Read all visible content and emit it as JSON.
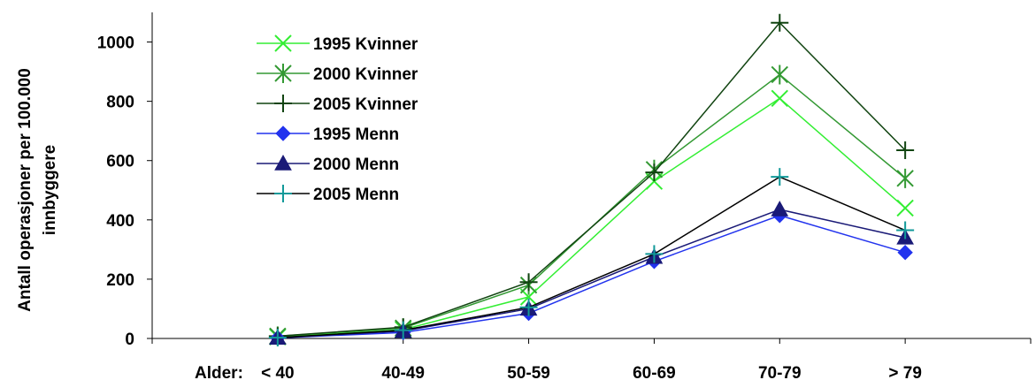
{
  "chart_data": {
    "type": "line",
    "ylabel": "Antall operasjoner per 100.000 innbyggere",
    "ylabel_lines": [
      "Antall operasjoner per 100.000",
      "innbyggere"
    ],
    "xlabel_prefix": "Alder:",
    "categories": [
      "< 40",
      "40-49",
      "50-59",
      "60-69",
      "70-79",
      "> 79"
    ],
    "ylim": [
      0,
      1100
    ],
    "yticks": [
      0,
      200,
      400,
      600,
      800,
      1000
    ],
    "grid": false,
    "legend_position": "top-left",
    "series": [
      {
        "name": "1995 Kvinner",
        "color": "#33ee33",
        "marker": "x-icon",
        "values": [
          5,
          30,
          140,
          530,
          810,
          440
        ]
      },
      {
        "name": "2000 Kvinner",
        "color": "#339933",
        "marker": "asterisk-icon",
        "values": [
          8,
          35,
          180,
          570,
          890,
          540
        ]
      },
      {
        "name": "2005 Kvinner",
        "color": "#114411",
        "marker": "plus-icon",
        "values": [
          8,
          38,
          190,
          560,
          1065,
          635
        ]
      },
      {
        "name": "1995 Menn",
        "color": "#2233ee",
        "marker": "diamond-icon",
        "values": [
          2,
          20,
          85,
          260,
          415,
          290
        ]
      },
      {
        "name": "2000 Menn",
        "color": "#1a1a77",
        "marker": "triangle-icon",
        "values": [
          2,
          25,
          100,
          275,
          435,
          340
        ]
      },
      {
        "name": "2005 Menn",
        "color": "#000000",
        "marker": "plus-icon",
        "marker_color": "#119999",
        "values": [
          3,
          28,
          105,
          285,
          545,
          365
        ]
      }
    ]
  }
}
